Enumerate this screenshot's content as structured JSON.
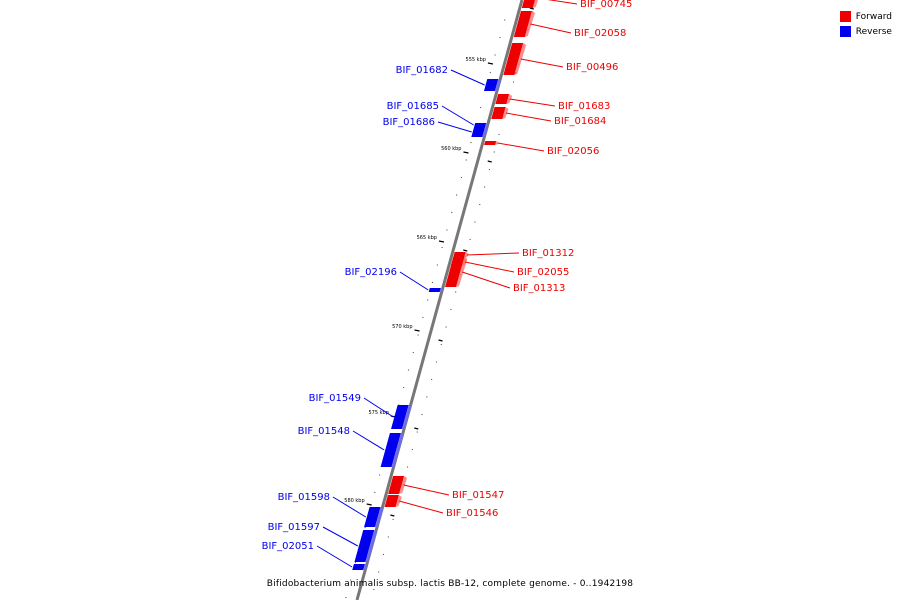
{
  "colors": {
    "forward": "#ee0000",
    "reverse": "#0000ee",
    "backbone": "#777777"
  },
  "legend": {
    "forward": "Forward",
    "reverse": "Reverse"
  },
  "caption": "Bifidobacterium animalis subsp. lactis BB-12, complete genome. - 0..1942198",
  "ticks": [
    {
      "label": "555 kbp"
    },
    {
      "label": "560 kbp"
    },
    {
      "label": "565 kbp"
    },
    {
      "label": "570 kbp"
    },
    {
      "label": "575 kbp"
    },
    {
      "label": "580 kbp"
    }
  ],
  "genes": [
    {
      "name": "BIF_00745",
      "strand": "forward"
    },
    {
      "name": "BIF_02058",
      "strand": "forward"
    },
    {
      "name": "BIF_00496",
      "strand": "forward"
    },
    {
      "name": "BIF_01682",
      "strand": "reverse"
    },
    {
      "name": "BIF_01683",
      "strand": "forward"
    },
    {
      "name": "BIF_01684",
      "strand": "forward"
    },
    {
      "name": "BIF_01685",
      "strand": "reverse"
    },
    {
      "name": "BIF_01686",
      "strand": "reverse"
    },
    {
      "name": "BIF_02056",
      "strand": "forward"
    },
    {
      "name": "BIF_01312",
      "strand": "forward"
    },
    {
      "name": "BIF_02055",
      "strand": "forward"
    },
    {
      "name": "BIF_01313",
      "strand": "forward"
    },
    {
      "name": "BIF_02196",
      "strand": "reverse"
    },
    {
      "name": "BIF_01549",
      "strand": "reverse"
    },
    {
      "name": "BIF_01548",
      "strand": "reverse"
    },
    {
      "name": "BIF_01547",
      "strand": "forward"
    },
    {
      "name": "BIF_01546",
      "strand": "forward"
    },
    {
      "name": "BIF_01598",
      "strand": "reverse"
    },
    {
      "name": "BIF_01597",
      "strand": "reverse"
    },
    {
      "name": "BIF_02051",
      "strand": "reverse"
    }
  ]
}
